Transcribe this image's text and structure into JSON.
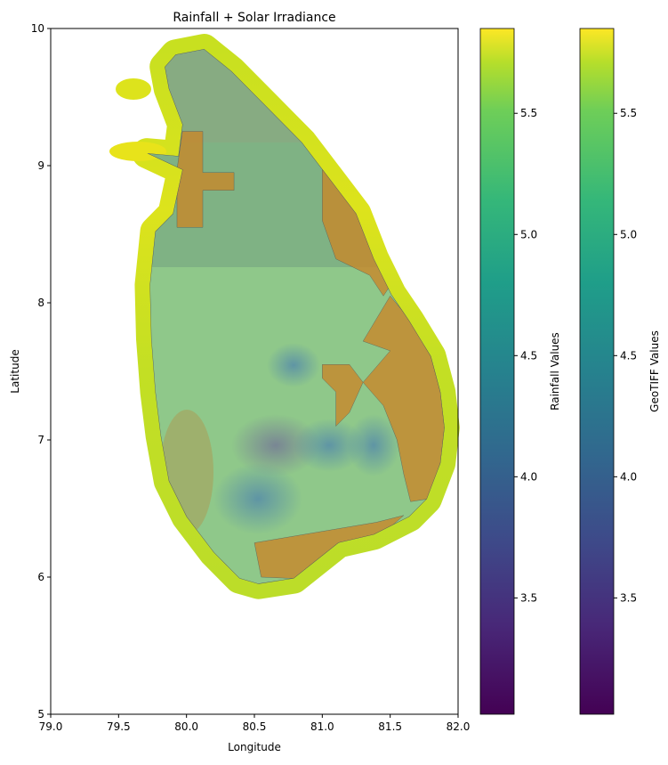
{
  "chart_data": {
    "type": "heatmap",
    "title": "Rainfall + Solar Irradiance",
    "xlabel": "Longitude",
    "ylabel": "Latitude",
    "xlim": [
      79.0,
      82.0
    ],
    "ylim": [
      5,
      10
    ],
    "xticks": [
      "79.0",
      "79.5",
      "80.0",
      "80.5",
      "81.0",
      "81.5",
      "82.0"
    ],
    "yticks": [
      "5",
      "6",
      "7",
      "8",
      "9",
      "10"
    ],
    "grid": false,
    "island_outline": [
      [
        79.92,
        9.81
      ],
      [
        80.13,
        9.85
      ],
      [
        80.33,
        9.69
      ],
      [
        80.59,
        9.43
      ],
      [
        80.85,
        9.17
      ],
      [
        81.05,
        8.91
      ],
      [
        81.25,
        8.65
      ],
      [
        81.38,
        8.32
      ],
      [
        81.51,
        8.06
      ],
      [
        81.64,
        7.87
      ],
      [
        81.8,
        7.61
      ],
      [
        81.87,
        7.35
      ],
      [
        81.9,
        7.09
      ],
      [
        81.87,
        6.83
      ],
      [
        81.77,
        6.57
      ],
      [
        81.64,
        6.44
      ],
      [
        81.38,
        6.31
      ],
      [
        81.12,
        6.25
      ],
      [
        80.79,
        5.99
      ],
      [
        80.53,
        5.95
      ],
      [
        80.39,
        5.99
      ],
      [
        80.2,
        6.18
      ],
      [
        80.0,
        6.44
      ],
      [
        79.87,
        6.7
      ],
      [
        79.81,
        7.03
      ],
      [
        79.77,
        7.35
      ],
      [
        79.74,
        7.74
      ],
      [
        79.73,
        8.13
      ],
      [
        79.77,
        8.52
      ],
      [
        79.9,
        8.65
      ],
      [
        79.97,
        8.97
      ],
      [
        79.71,
        9.09
      ],
      [
        79.94,
        9.07
      ],
      [
        79.97,
        9.3
      ],
      [
        79.87,
        9.56
      ],
      [
        79.84,
        9.72
      ]
    ],
    "orange_regions": [
      [
        [
          79.97,
          9.25
        ],
        [
          80.12,
          9.25
        ],
        [
          80.12,
          8.95
        ],
        [
          80.35,
          8.95
        ],
        [
          80.35,
          8.82
        ],
        [
          80.12,
          8.82
        ],
        [
          80.12,
          8.55
        ],
        [
          79.93,
          8.55
        ],
        [
          79.93,
          8.97
        ]
      ],
      [
        [
          81.0,
          8.97
        ],
        [
          81.2,
          8.85
        ],
        [
          81.35,
          8.45
        ],
        [
          81.55,
          8.2
        ],
        [
          81.45,
          8.05
        ],
        [
          81.35,
          8.2
        ],
        [
          81.1,
          8.32
        ],
        [
          81.0,
          8.6
        ]
      ],
      [
        [
          81.5,
          8.05
        ],
        [
          81.65,
          7.87
        ],
        [
          81.8,
          7.61
        ],
        [
          81.87,
          7.35
        ],
        [
          81.9,
          7.09
        ],
        [
          81.87,
          6.83
        ],
        [
          81.78,
          6.57
        ],
        [
          81.65,
          6.55
        ],
        [
          81.6,
          6.75
        ],
        [
          81.55,
          7.0
        ],
        [
          81.45,
          7.25
        ],
        [
          81.3,
          7.42
        ],
        [
          81.5,
          7.65
        ],
        [
          81.3,
          7.72
        ]
      ],
      [
        [
          81.0,
          7.55
        ],
        [
          81.2,
          7.55
        ],
        [
          81.3,
          7.42
        ],
        [
          81.2,
          7.2
        ],
        [
          81.1,
          7.1
        ],
        [
          81.1,
          7.35
        ],
        [
          81.0,
          7.45
        ]
      ],
      [
        [
          80.5,
          6.25
        ],
        [
          80.8,
          6.3
        ],
        [
          81.1,
          6.35
        ],
        [
          81.4,
          6.4
        ],
        [
          81.6,
          6.45
        ],
        [
          81.45,
          6.32
        ],
        [
          81.12,
          6.25
        ],
        [
          80.79,
          5.99
        ],
        [
          80.55,
          6.0
        ]
      ]
    ],
    "colorbars": [
      {
        "label": "Rainfall Values",
        "range": [
          3.02,
          5.85
        ],
        "ticks": [
          "3.5",
          "4.0",
          "4.5",
          "5.0",
          "5.5"
        ]
      },
      {
        "label": "GeoTIFF Values",
        "range": [
          3.02,
          5.85
        ],
        "ticks": [
          "3.5",
          "4.0",
          "4.5",
          "5.0",
          "5.5"
        ]
      }
    ],
    "colormap": "viridis"
  }
}
